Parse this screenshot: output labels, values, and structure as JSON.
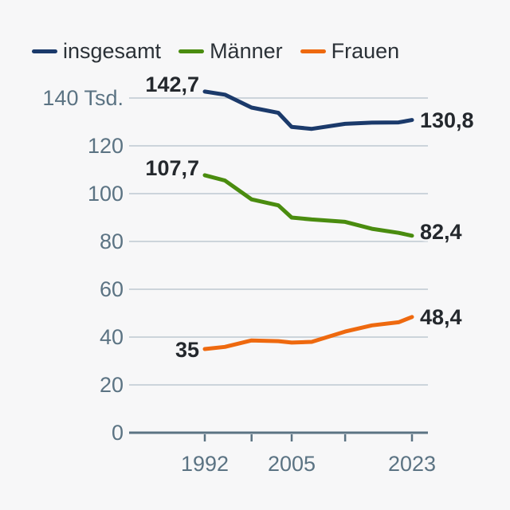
{
  "chart_data": {
    "type": "line",
    "title": "",
    "unit": "Tsd.",
    "legend_position": "top",
    "grid": true,
    "x": [
      1992,
      1995,
      1999,
      2003,
      2005,
      2008,
      2013,
      2017,
      2021,
      2023
    ],
    "series": [
      {
        "name": "insgesamt",
        "color": "#1b3a6b",
        "values": [
          142.7,
          141.4,
          136.0,
          133.8,
          127.9,
          127.1,
          129.2,
          129.7,
          129.8,
          130.8
        ],
        "start_label": "142,7",
        "end_label": "130,8"
      },
      {
        "name": "Männer",
        "color": "#4a8c0f",
        "values": [
          107.7,
          105.5,
          97.6,
          95.1,
          90.0,
          89.2,
          88.2,
          85.3,
          83.6,
          82.4
        ],
        "start_label": "107,7",
        "end_label": "82,4"
      },
      {
        "name": "Frauen",
        "color": "#ee690f",
        "values": [
          35.0,
          35.9,
          38.6,
          38.3,
          37.7,
          38.0,
          42.3,
          44.9,
          46.2,
          48.4
        ],
        "start_label": "35",
        "end_label": "48,4"
      }
    ],
    "y_ticks": [
      {
        "value": 0,
        "label": "0"
      },
      {
        "value": 20,
        "label": "20"
      },
      {
        "value": 40,
        "label": "40"
      },
      {
        "value": 60,
        "label": "60"
      },
      {
        "value": 80,
        "label": "80"
      },
      {
        "value": 100,
        "label": "100"
      },
      {
        "value": 120,
        "label": "120"
      },
      {
        "value": 140,
        "label": "140 Tsd."
      }
    ],
    "x_ticks": [
      {
        "year": 1992,
        "label": "1992"
      },
      {
        "year": 1999,
        "label": ""
      },
      {
        "year": 2005,
        "label": "2005"
      },
      {
        "year": 2013,
        "label": ""
      },
      {
        "year": 2023,
        "label": "2023"
      }
    ],
    "ylim": [
      0,
      146
    ],
    "xlim": [
      1992,
      2023
    ]
  },
  "colors": {
    "background": "#f7f7f8",
    "gridline": "#ccd4db",
    "axis": "#5b7383",
    "axis_label": "#5b7383",
    "legend_text": "#2b3137",
    "data_label": "#24282d"
  }
}
